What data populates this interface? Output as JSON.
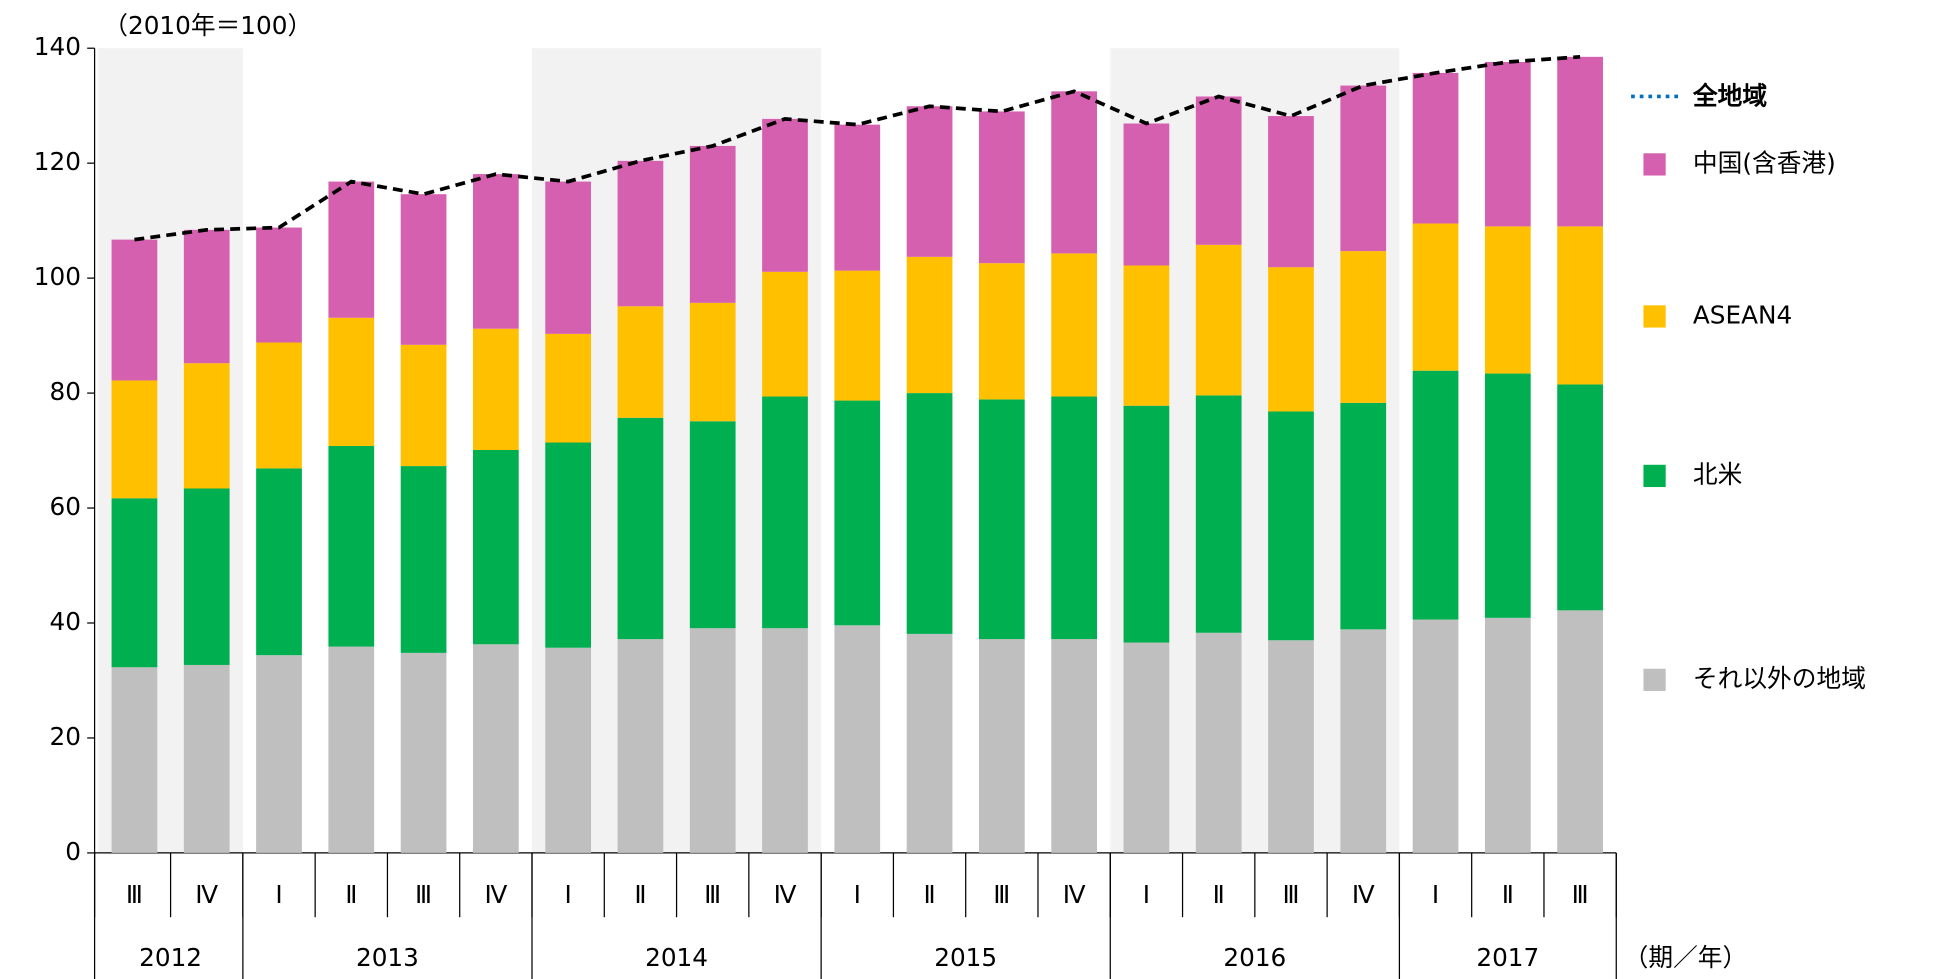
{
  "chart_data": {
    "type": "stacked-bar-line",
    "unit_label": "（2010年＝100）",
    "x_label": "（期／年）",
    "categories": [
      "Ⅲ",
      "Ⅳ",
      "Ⅰ",
      "Ⅱ",
      "Ⅲ",
      "Ⅳ",
      "Ⅰ",
      "Ⅱ",
      "Ⅲ",
      "Ⅳ",
      "Ⅰ",
      "Ⅱ",
      "Ⅲ",
      "Ⅳ",
      "Ⅰ",
      "Ⅱ",
      "Ⅲ",
      "Ⅳ",
      "Ⅰ",
      "Ⅱ",
      "Ⅲ"
    ],
    "year_groups": [
      {
        "label": "2012",
        "span": 2
      },
      {
        "label": "2013",
        "span": 4
      },
      {
        "label": "2014",
        "span": 4
      },
      {
        "label": "2015",
        "span": 4
      },
      {
        "label": "2016",
        "span": 4
      },
      {
        "label": "2017",
        "span": 3
      }
    ],
    "series": [
      {
        "name": "それ以外の地域",
        "color": "#bfbfbf",
        "values": [
          32.3,
          32.7,
          34.4,
          35.9,
          34.8,
          36.3,
          35.7,
          37.2,
          39.1,
          39.1,
          39.6,
          38.1,
          37.2,
          37.2,
          36.6,
          38.3,
          37.0,
          38.9,
          40.6,
          40.9,
          42.2
        ]
      },
      {
        "name": "北米",
        "color": "#00b050",
        "values": [
          29.4,
          30.7,
          32.5,
          34.9,
          32.5,
          33.8,
          35.7,
          38.5,
          36.0,
          40.3,
          39.1,
          41.9,
          41.7,
          42.2,
          41.2,
          41.3,
          39.8,
          39.4,
          43.3,
          42.5,
          39.3
        ]
      },
      {
        "name": "ASEAN4",
        "color": "#ffc000",
        "values": [
          20.5,
          21.8,
          21.9,
          22.3,
          21.1,
          21.1,
          18.9,
          19.4,
          20.6,
          21.7,
          22.6,
          23.7,
          23.7,
          24.9,
          24.4,
          26.2,
          25.1,
          26.4,
          25.6,
          25.6,
          27.5
        ]
      },
      {
        "name": "中国(含香港)",
        "color": "#d660b0",
        "values": [
          24.5,
          23.2,
          20.0,
          23.7,
          26.2,
          26.9,
          26.5,
          25.3,
          27.3,
          26.6,
          25.4,
          26.2,
          26.4,
          28.2,
          24.7,
          25.8,
          26.3,
          28.8,
          26.2,
          28.6,
          29.5
        ]
      }
    ],
    "line": {
      "name": "全地域",
      "color": "#000000",
      "legend_color": "#0070c0",
      "values": [
        106.7,
        108.4,
        108.8,
        116.8,
        114.6,
        118.1,
        116.8,
        120.4,
        123.0,
        127.7,
        126.7,
        129.9,
        129.0,
        132.5,
        126.9,
        131.6,
        128.2,
        133.5,
        135.7,
        137.6,
        138.5
      ]
    },
    "ylim": [
      0,
      140
    ],
    "yticks": [
      0,
      20,
      40,
      60,
      80,
      100,
      120,
      140
    ]
  }
}
